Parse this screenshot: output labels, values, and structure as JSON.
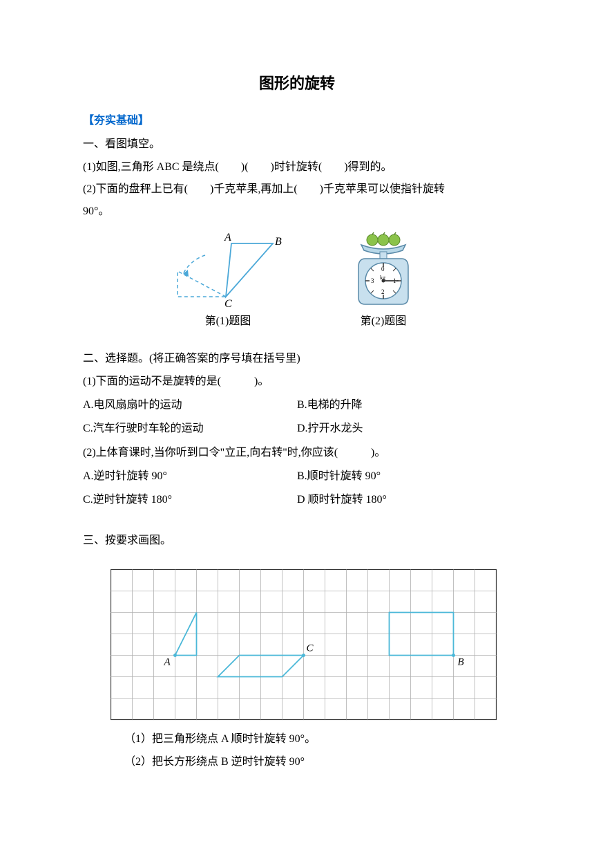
{
  "title": "图形的旋转",
  "section_header": "【夯实基础】",
  "q1": {
    "heading": "一、看图填空。",
    "item1": "(1)如图,三角形 ABC 是绕点(　　)(　　)时针旋转(　　)得到的。",
    "item2": "(2)下面的盘秤上已有(　　)千克苹果,再加上(　　)千克苹果可以使指针旋转",
    "item2b": "90°。"
  },
  "fig1": {
    "caption": "第(1)题图",
    "labelA": "A",
    "labelB": "B",
    "labelC": "C",
    "solid_color": "#4ba8d8",
    "dash_color": "#4ba8d8",
    "arc_color": "#4ba8d8"
  },
  "fig2": {
    "caption": "第(2)题图",
    "scale_label0": "0",
    "scale_label1": "1",
    "scale_label2": "2",
    "scale_label3": "3",
    "scale_labelkg": "kg",
    "apple_color": "#8bc34a",
    "plate_color": "#b8d8e8",
    "body_color": "#c8e0ee",
    "face_color": "#ffffff",
    "border_color": "#5a8aa8",
    "needle_color": "#333333"
  },
  "q2": {
    "heading": "二、选择题。(将正确答案的序号填在括号里)",
    "item1": "(1)下面的运动不是旋转的是(　　　)。",
    "item1optA": "A.电风扇扇叶的运动",
    "item1optB": "B.电梯的升降",
    "item1optC": "C.汽车行驶时车轮的运动",
    "item1optD": "D.拧开水龙头",
    "item2": "(2)上体育课时,当你听到口令\"立正,向右转\"时,你应该(　　　)。",
    "item2optA": "A.逆时针旋转 90°",
    "item2optB": "B.顺时针旋转 90°",
    "item2optC": "C.逆时针旋转 180°",
    "item2optD": "D 顺时针旋转 180°"
  },
  "q3": {
    "heading": "三、按要求画图。",
    "sub1": "（1）把三角形绕点 A 顺时针旋转 90°。",
    "sub2": "（2）把长方形绕点 B 逆时针旋转 90°",
    "grid": {
      "cols": 18,
      "rows": 7,
      "cell": 31,
      "grid_color": "#b0b0b0",
      "border_color": "#333333",
      "shape_color": "#4bb8d8",
      "label_color": "#000000",
      "labelA": "A",
      "labelB": "B",
      "labelC": "C"
    }
  }
}
